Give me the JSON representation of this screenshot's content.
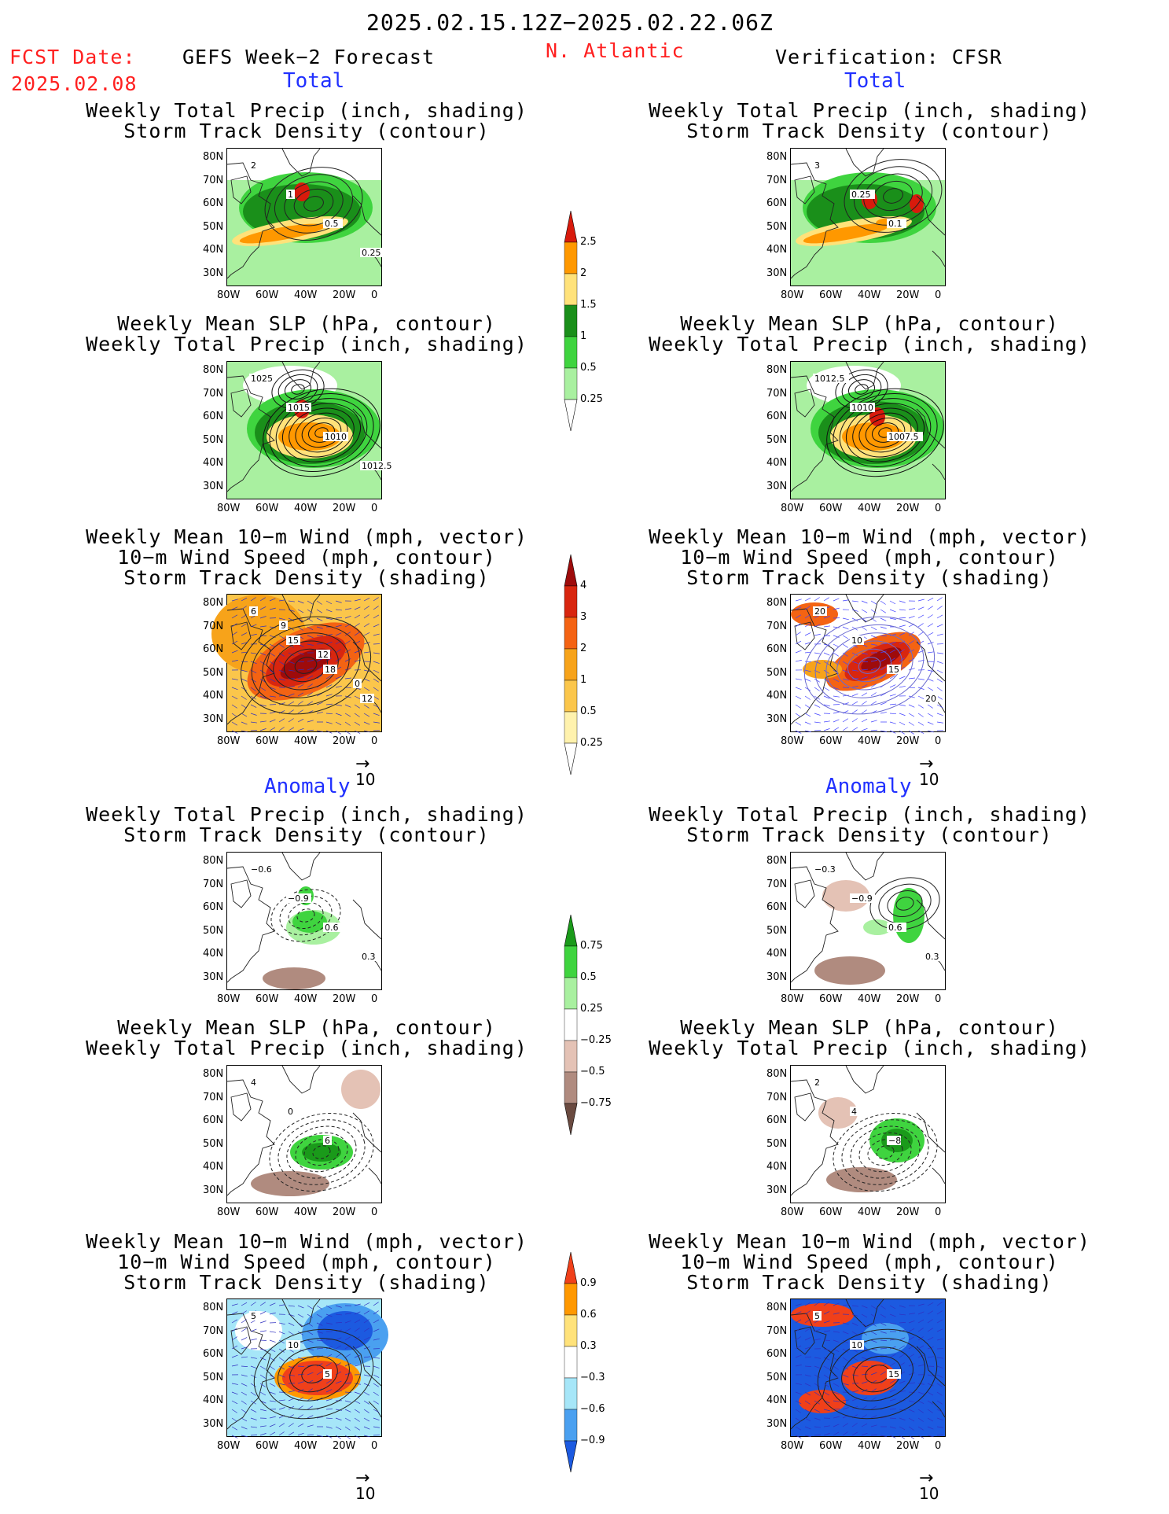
{
  "header": {
    "date_range": "2025.02.15.12Z−2025.02.22.06Z",
    "fcst_label": "FCST Date:",
    "fcst_date": "2025.02.08",
    "left_title": "GEFS Week−2 Forecast",
    "region": "N. Atlantic",
    "right_title": "Verification: CFSR"
  },
  "sections": {
    "total": "Total",
    "anomaly": "Anomaly"
  },
  "panel_titles": {
    "precip_track": [
      "Weekly Total Precip (inch, shading)",
      "Storm Track Density (contour)"
    ],
    "slp_precip": [
      "Weekly Mean SLP (hPa, contour)",
      "Weekly Total Precip (inch, shading)"
    ],
    "wind": [
      "Weekly Mean 10−m Wind (mph, vector)",
      "10−m Wind Speed (mph, contour)",
      "Storm Track Density (shading)"
    ]
  },
  "axes": {
    "lat": [
      "80N",
      "70N",
      "60N",
      "50N",
      "40N",
      "30N"
    ],
    "lon": [
      "80W",
      "60W",
      "40W",
      "20W",
      "0"
    ]
  },
  "vector_ref": "10",
  "colorbars": {
    "precip_total": {
      "labels": [
        "2.5",
        "2",
        "1.5",
        "1",
        "0.5",
        "0.25"
      ],
      "colors": [
        "#d81a0c",
        "#ff9800",
        "#ffe27a",
        "#1a8f1a",
        "#3fd43f",
        "#a9f0a0",
        "#ffffff"
      ]
    },
    "track_total": {
      "labels": [
        "4",
        "3",
        "2",
        "1",
        "0.5",
        "0.25"
      ],
      "colors": [
        "#9e0b0b",
        "#d8260f",
        "#f46313",
        "#f7a31a",
        "#fbc64b",
        "#fff2ad",
        "#ffffff"
      ]
    },
    "precip_anom": {
      "labels": [
        "0.75",
        "0.5",
        "0.25",
        "−0.25",
        "−0.5",
        "−0.75"
      ],
      "colors": [
        "#1a9a1a",
        "#3fd43f",
        "#a9f0a0",
        "#ffffff",
        "#e4c2b5",
        "#b08b7f",
        "#6a4a40"
      ]
    },
    "track_anom": {
      "labels": [
        "0.9",
        "0.6",
        "0.3",
        "−0.3",
        "−0.6",
        "−0.9"
      ],
      "colors": [
        "#f0401a",
        "#ff9800",
        "#ffe27a",
        "#ffffff",
        "#a6e6f8",
        "#4aa0f0",
        "#1c5ae0"
      ]
    }
  },
  "map_labels": {
    "r1l": [
      "2",
      "1",
      "0.5",
      "0.25"
    ],
    "r1r": [
      "3",
      "0.25",
      "0.1"
    ],
    "r2l": [
      "1025",
      "1015",
      "1010",
      "1012.5"
    ],
    "r2r": [
      "1012.5",
      "1010",
      "1007.5"
    ],
    "r3l": [
      "6",
      "15",
      "18",
      "12",
      "9",
      "12",
      "0"
    ],
    "r3r": [
      "20",
      "10",
      "15",
      "20"
    ],
    "r4l": [
      "−0.6",
      "−0.9",
      "0.6",
      "0.3"
    ],
    "r4r": [
      "−0.3",
      "−0.9",
      "0.6",
      "0.3"
    ],
    "r5l": [
      "4",
      "0",
      "6"
    ],
    "r5r": [
      "2",
      "4",
      "−8"
    ],
    "r6l": [
      "5",
      "10",
      "5"
    ],
    "r6r": [
      "5",
      "10",
      "15"
    ]
  }
}
